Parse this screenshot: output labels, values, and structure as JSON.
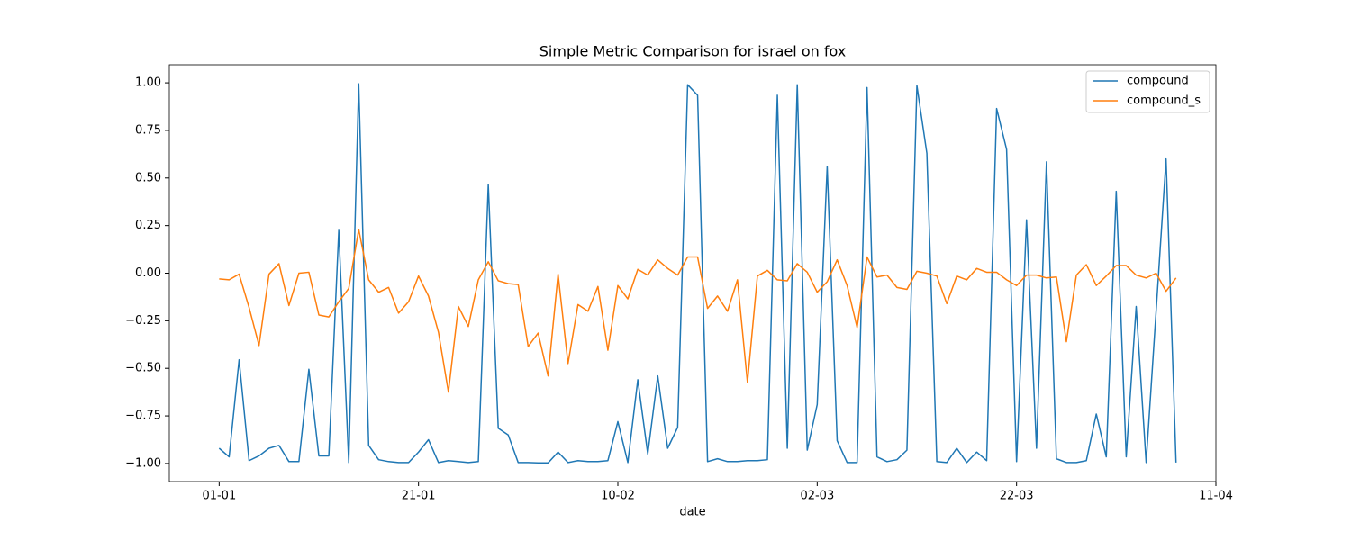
{
  "chart_data": {
    "type": "line",
    "title": "Simple Metric Comparison for israel on fox",
    "x_label": "date",
    "x": [
      "01-01",
      "02-01",
      "03-01",
      "04-01",
      "05-01",
      "06-01",
      "07-01",
      "08-01",
      "09-01",
      "10-01",
      "11-01",
      "12-01",
      "13-01",
      "14-01",
      "15-01",
      "16-01",
      "17-01",
      "18-01",
      "19-01",
      "20-01",
      "21-01",
      "22-01",
      "23-01",
      "24-01",
      "25-01",
      "26-01",
      "27-01",
      "28-01",
      "29-01",
      "30-01",
      "31-01",
      "01-02",
      "02-02",
      "03-02",
      "04-02",
      "05-02",
      "06-02",
      "07-02",
      "08-02",
      "09-02",
      "10-02",
      "11-02",
      "12-02",
      "13-02",
      "14-02",
      "15-02",
      "16-02",
      "17-02",
      "18-02",
      "19-02",
      "20-02",
      "21-02",
      "22-02",
      "23-02",
      "24-02",
      "25-02",
      "26-02",
      "27-02",
      "28-02",
      "01-03",
      "02-03",
      "03-03",
      "04-03",
      "05-03",
      "06-03",
      "07-03",
      "08-03",
      "09-03",
      "10-03",
      "11-03",
      "12-03",
      "13-03",
      "14-03",
      "15-03",
      "16-03",
      "17-03",
      "18-03",
      "19-03",
      "20-03",
      "21-03",
      "22-03",
      "23-03",
      "24-03",
      "25-03",
      "26-03",
      "27-03",
      "28-03",
      "29-03",
      "30-03",
      "31-03",
      "01-04",
      "02-04",
      "03-04",
      "04-04",
      "05-04",
      "06-04",
      "07-04"
    ],
    "series": [
      {
        "name": "compound",
        "color": "#1f77b4",
        "values": [
          -0.92,
          -0.965,
          -0.455,
          -0.985,
          -0.96,
          -0.92,
          -0.905,
          -0.99,
          -0.99,
          -0.505,
          -0.96,
          -0.96,
          0.225,
          -0.995,
          0.995,
          -0.905,
          -0.98,
          -0.99,
          -0.995,
          -0.995,
          -0.94,
          -0.875,
          -0.995,
          -0.985,
          -0.99,
          -0.995,
          -0.99,
          0.465,
          -0.815,
          -0.85,
          -0.995,
          -0.995,
          -0.997,
          -0.997,
          -0.94,
          -0.995,
          -0.985,
          -0.99,
          -0.99,
          -0.985,
          -0.78,
          -0.995,
          -0.56,
          -0.95,
          -0.54,
          -0.92,
          -0.81,
          0.99,
          0.935,
          -0.99,
          -0.975,
          -0.99,
          -0.99,
          -0.985,
          -0.985,
          -0.98,
          0.935,
          -0.92,
          0.99,
          -0.93,
          -0.69,
          0.56,
          -0.88,
          -0.995,
          -0.995,
          0.975,
          -0.965,
          -0.99,
          -0.98,
          -0.93,
          0.985,
          0.63,
          -0.99,
          -0.995,
          -0.92,
          -0.995,
          -0.94,
          -0.985,
          0.865,
          0.65,
          -0.99,
          0.28,
          -0.92,
          0.585,
          -0.975,
          -0.995,
          -0.995,
          -0.985,
          -0.74,
          -0.965,
          0.43,
          -0.965,
          -0.175,
          -0.995,
          -0.2,
          0.6,
          -0.995
        ]
      },
      {
        "name": "compound_s",
        "color": "#ff7f0e",
        "values": [
          -0.03,
          -0.035,
          -0.005,
          -0.18,
          -0.38,
          -0.005,
          0.05,
          -0.17,
          0.0,
          0.005,
          -0.22,
          -0.23,
          -0.15,
          -0.08,
          0.23,
          -0.035,
          -0.1,
          -0.075,
          -0.21,
          -0.15,
          -0.015,
          -0.12,
          -0.31,
          -0.625,
          -0.175,
          -0.28,
          -0.035,
          0.06,
          -0.04,
          -0.055,
          -0.06,
          -0.385,
          -0.315,
          -0.54,
          -0.005,
          -0.475,
          -0.165,
          -0.2,
          -0.07,
          -0.405,
          -0.065,
          -0.135,
          0.02,
          -0.01,
          0.07,
          0.025,
          -0.01,
          0.085,
          0.085,
          -0.185,
          -0.12,
          -0.2,
          -0.035,
          -0.575,
          -0.015,
          0.015,
          -0.035,
          -0.04,
          0.05,
          0.005,
          -0.1,
          -0.045,
          0.07,
          -0.065,
          -0.285,
          0.085,
          -0.02,
          -0.01,
          -0.075,
          -0.085,
          0.01,
          0.0,
          -0.015,
          -0.16,
          -0.015,
          -0.035,
          0.025,
          0.005,
          0.005,
          -0.035,
          -0.065,
          -0.01,
          -0.01,
          -0.025,
          -0.02,
          -0.36,
          -0.01,
          0.045,
          -0.065,
          -0.015,
          0.04,
          0.04,
          -0.01,
          -0.025,
          0.0,
          -0.095,
          -0.025
        ]
      }
    ],
    "xlim": [
      "27-12",
      "11-04"
    ],
    "xticks": [
      "01-01",
      "21-01",
      "10-02",
      "02-03",
      "22-03",
      "11-04"
    ],
    "ylim": [
      -1.095,
      1.095
    ],
    "yticks": [
      {
        "value": -1,
        "label": "−1.00"
      },
      {
        "value": -0.75,
        "label": "−0.75"
      },
      {
        "value": -0.5,
        "label": "−0.50"
      },
      {
        "value": -0.25,
        "label": "−0.25"
      },
      {
        "value": 0,
        "label": "0.00"
      },
      {
        "value": 0.25,
        "label": "0.25"
      },
      {
        "value": 0.5,
        "label": "0.50"
      },
      {
        "value": 0.75,
        "label": "0.75"
      },
      {
        "value": 1,
        "label": "1.00"
      }
    ],
    "legend": "upper right"
  }
}
